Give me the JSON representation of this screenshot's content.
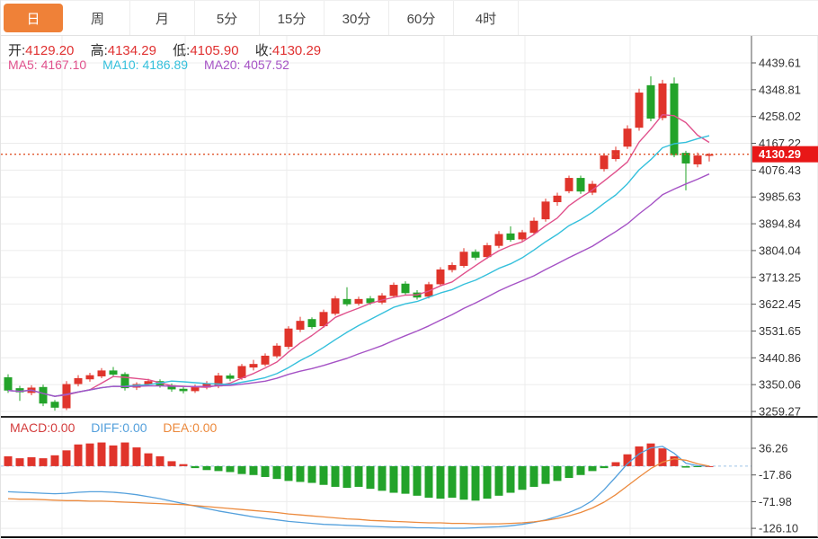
{
  "tabs": {
    "active_index": 0,
    "items": [
      {
        "label": "日"
      },
      {
        "label": "周"
      },
      {
        "label": "月"
      },
      {
        "label": "5分"
      },
      {
        "label": "15分"
      },
      {
        "label": "30分"
      },
      {
        "label": "60分"
      },
      {
        "label": "4时"
      }
    ]
  },
  "legend_ohlc": {
    "open_label": "开:",
    "open": "4129.20",
    "high_label": "高:",
    "high": "4134.29",
    "low_label": "低:",
    "low": "4105.90",
    "close_label": "收:",
    "close": "4130.29"
  },
  "legend_ma": {
    "ma5_label": "MA5:",
    "ma5": "4167.10",
    "ma10_label": "MA10:",
    "ma10": "4186.89",
    "ma20_label": "MA20:",
    "ma20": "4057.52"
  },
  "legend_macd": {
    "macd_label": "MACD:",
    "macd": "0.00",
    "diff_label": "DIFF:",
    "diff": "0.00",
    "dea_label": "DEA:",
    "dea": "0.00"
  },
  "colors": {
    "up": "#e0342b",
    "down": "#23a32a",
    "ma5": "#e0518c",
    "ma10": "#35c0dc",
    "ma20": "#a552c5",
    "diff": "#54a0dc",
    "dea": "#ec8a3d",
    "price_line": "#e0532a",
    "badge_bg": "#e81717",
    "badge_text": "#ffffff",
    "ohlc_value": "#e03131",
    "macd_value_red": "#d33c3c",
    "tab_active_bg": "#ef8138",
    "axis_text": "#333333",
    "grid": "#ececec",
    "axis_line": "#555555",
    "zero_line": "#9cc3e6"
  },
  "chart_data": {
    "type": "candlestick",
    "panels": [
      {
        "name": "price",
        "ohlc_last": {
          "open": 4129.2,
          "high": 4134.29,
          "low": 4105.9,
          "close": 4130.29
        },
        "ma_values": {
          "MA5": 4167.1,
          "MA10": 4186.89,
          "MA20": 4057.52
        },
        "ma_periods": [
          5,
          10,
          20
        ],
        "price_line": {
          "value": 4130.29,
          "label": "4130.29"
        },
        "y_ticks": [
          4439.61,
          4348.81,
          4258.02,
          4167.22,
          4076.43,
          3985.63,
          3894.84,
          3804.04,
          3713.25,
          3622.45,
          3531.65,
          3440.86,
          3350.06,
          3259.27
        ],
        "candles": [
          [
            3375,
            3385,
            3322,
            3330
          ],
          [
            3338,
            3346,
            3295,
            3324
          ],
          [
            3322,
            3348,
            3314,
            3340
          ],
          [
            3342,
            3350,
            3277,
            3286
          ],
          [
            3292,
            3298,
            3262,
            3272
          ],
          [
            3270,
            3362,
            3264,
            3352
          ],
          [
            3352,
            3382,
            3344,
            3372
          ],
          [
            3368,
            3390,
            3360,
            3382
          ],
          [
            3378,
            3406,
            3372,
            3398
          ],
          [
            3398,
            3410,
            3378,
            3384
          ],
          [
            3386,
            3392,
            3330,
            3338
          ],
          [
            3340,
            3358,
            3332,
            3352
          ],
          [
            3350,
            3370,
            3346,
            3362
          ],
          [
            3362,
            3368,
            3340,
            3346
          ],
          [
            3348,
            3354,
            3326,
            3334
          ],
          [
            3336,
            3342,
            3320,
            3328
          ],
          [
            3328,
            3350,
            3322,
            3342
          ],
          [
            3340,
            3362,
            3334,
            3354
          ],
          [
            3344,
            3390,
            3338,
            3381
          ],
          [
            3381,
            3388,
            3362,
            3370
          ],
          [
            3372,
            3420,
            3366,
            3413
          ],
          [
            3408,
            3434,
            3398,
            3420
          ],
          [
            3418,
            3456,
            3412,
            3448
          ],
          [
            3446,
            3490,
            3440,
            3482
          ],
          [
            3478,
            3548,
            3470,
            3540
          ],
          [
            3536,
            3580,
            3528,
            3566
          ],
          [
            3572,
            3578,
            3538,
            3545
          ],
          [
            3548,
            3604,
            3542,
            3596
          ],
          [
            3590,
            3650,
            3584,
            3642
          ],
          [
            3640,
            3680,
            3616,
            3622
          ],
          [
            3624,
            3648,
            3618,
            3640
          ],
          [
            3642,
            3650,
            3620,
            3626
          ],
          [
            3628,
            3660,
            3622,
            3652
          ],
          [
            3650,
            3696,
            3644,
            3688
          ],
          [
            3692,
            3700,
            3654,
            3660
          ],
          [
            3662,
            3670,
            3638,
            3645
          ],
          [
            3648,
            3698,
            3642,
            3690
          ],
          [
            3690,
            3748,
            3684,
            3740
          ],
          [
            3738,
            3764,
            3730,
            3755
          ],
          [
            3752,
            3812,
            3746,
            3800
          ],
          [
            3800,
            3808,
            3772,
            3780
          ],
          [
            3782,
            3830,
            3776,
            3822
          ],
          [
            3820,
            3870,
            3812,
            3860
          ],
          [
            3862,
            3886,
            3834,
            3840
          ],
          [
            3842,
            3874,
            3836,
            3866
          ],
          [
            3864,
            3916,
            3858,
            3905
          ],
          [
            3910,
            3980,
            3902,
            3970
          ],
          [
            3968,
            4000,
            3956,
            3990
          ],
          [
            4005,
            4058,
            3998,
            4050
          ],
          [
            4050,
            4058,
            3996,
            4004
          ],
          [
            4000,
            4040,
            3992,
            4030
          ],
          [
            4080,
            4134,
            4072,
            4126
          ],
          [
            4114,
            4156,
            4106,
            4144
          ],
          [
            4156,
            4228,
            4148,
            4217
          ],
          [
            4220,
            4352,
            4210,
            4339
          ],
          [
            4364,
            4394,
            4242,
            4251
          ],
          [
            4253,
            4382,
            4245,
            4370
          ],
          [
            4370,
            4390,
            4120,
            4127
          ],
          [
            4135,
            4142,
            4008,
            4099
          ],
          [
            4096,
            4136,
            4086,
            4126
          ],
          [
            4129.2,
            4134.29,
            4105.9,
            4130.29
          ]
        ]
      },
      {
        "name": "macd",
        "last_values": {
          "MACD": 0.0,
          "DIFF": 0.0,
          "DEA": 0.0
        },
        "y_ticks": [
          36.26,
          -17.86,
          -71.98,
          -126.1
        ],
        "hist": [
          20,
          16,
          18,
          16,
          22,
          32,
          44,
          46,
          48,
          42,
          48,
          38,
          26,
          20,
          10,
          4,
          -4,
          -8,
          -10,
          -12,
          -16,
          -18,
          -22,
          -26,
          -30,
          -32,
          -34,
          -38,
          -42,
          -44,
          -42,
          -46,
          -50,
          -54,
          -56,
          -60,
          -64,
          -66,
          -64,
          -68,
          -70,
          -66,
          -60,
          -54,
          -48,
          -42,
          -36,
          -30,
          -24,
          -18,
          -10,
          -4,
          8,
          24,
          40,
          46,
          36,
          20,
          -3,
          -2,
          0
        ],
        "diff": [
          -52,
          -53,
          -54,
          -55,
          -56,
          -55,
          -53,
          -52,
          -52,
          -53,
          -55,
          -58,
          -62,
          -66,
          -71,
          -76,
          -81,
          -86,
          -91,
          -95,
          -99,
          -103,
          -106,
          -109,
          -112,
          -114,
          -116,
          -118,
          -119,
          -120,
          -121,
          -122,
          -123,
          -124,
          -124,
          -125,
          -125,
          -126,
          -126,
          -126,
          -125,
          -124,
          -123,
          -121,
          -118,
          -114,
          -109,
          -102,
          -94,
          -84,
          -70,
          -48,
          -22,
          5,
          25,
          37,
          40,
          26,
          6,
          1,
          0
        ],
        "dea": [
          -66,
          -67,
          -67,
          -68,
          -69,
          -70,
          -70,
          -71,
          -71,
          -72,
          -73,
          -74,
          -75,
          -76,
          -77,
          -78,
          -80,
          -82,
          -84,
          -86,
          -88,
          -90,
          -92,
          -94,
          -97,
          -99,
          -101,
          -103,
          -105,
          -107,
          -108,
          -110,
          -111,
          -112,
          -113,
          -114,
          -115,
          -115,
          -116,
          -116,
          -117,
          -117,
          -117,
          -116,
          -115,
          -113,
          -110,
          -106,
          -101,
          -94,
          -85,
          -73,
          -58,
          -40,
          -22,
          -5,
          8,
          15,
          12,
          5,
          0
        ]
      }
    ]
  }
}
